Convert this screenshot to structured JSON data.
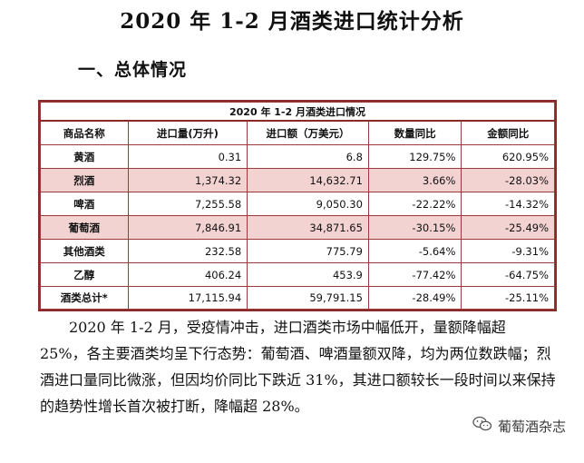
{
  "title": "2020 年 1-2 月酒类进口统计分析",
  "section_heading": "一、总体情况",
  "table": {
    "caption": "2020 年 1-2 月酒类进口情况",
    "headers": [
      "商品名称",
      "进口量(万升)",
      "进口额（万美元）",
      "数量同比",
      "金额同比"
    ],
    "rows": [
      [
        "黄酒",
        "0.31",
        "6.8",
        "129.75%",
        "620.95%"
      ],
      [
        "烈酒",
        "1,374.32",
        "14,632.71",
        "3.66%",
        "-28.03%"
      ],
      [
        "啤酒",
        "7,255.58",
        "9,050.30",
        "-22.22%",
        "-14.32%"
      ],
      [
        "葡萄酒",
        "7,846.91",
        "34,871.65",
        "-30.15%",
        "-25.49%"
      ],
      [
        "其他酒类",
        "232.58",
        "775.79",
        "-5.64%",
        "-9.31%"
      ],
      [
        "乙醇",
        "406.24",
        "453.9",
        "-77.42%",
        "-64.75%"
      ],
      [
        "酒类总计*",
        "17,115.94",
        "59,791.15",
        "-28.49%",
        "-25.11%"
      ]
    ]
  },
  "paragraph": "2020 年 1-2 月，受疫情冲击，进口酒类市场中幅低开，量额降幅超 25%，各主要酒类均呈下行态势：葡萄酒、啤酒量额双降，均为两位数跌幅；烈酒进口量同比微涨，但因均价同比下跌近 31%，其进口额较长一段时间以来保持的趋势性增长首次被打断，降幅超 28%。",
  "watermark": {
    "text": "葡萄酒杂志",
    "icon": "wechat-icon"
  }
}
